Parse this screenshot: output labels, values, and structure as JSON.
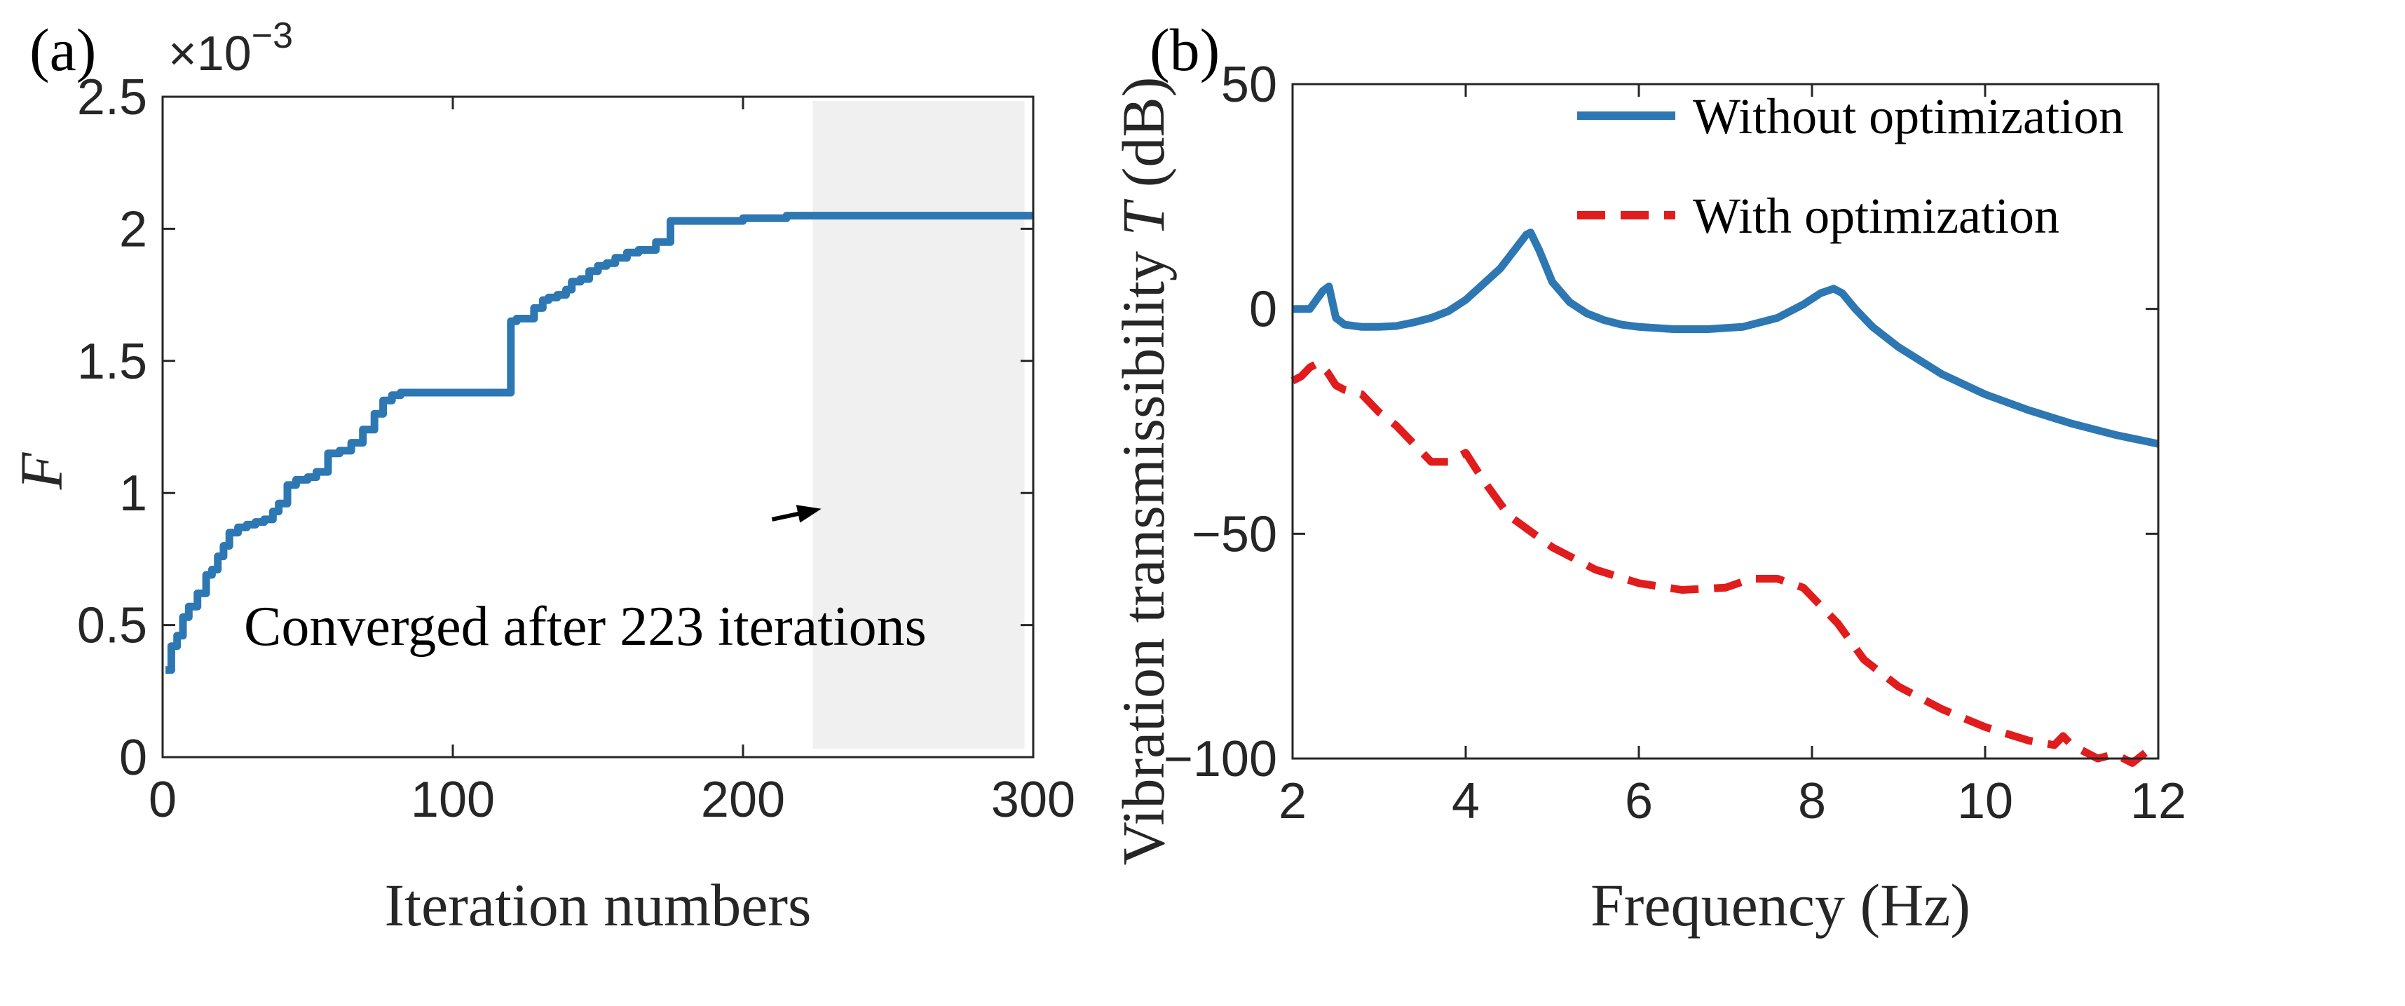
{
  "chart_data": [
    {
      "panel_label": "(a)",
      "type": "line",
      "xlabel": "Iteration numbers",
      "ylabel": "F",
      "y_multiplier_base": "×10",
      "y_multiplier_exp": "−3",
      "xlim": [
        0,
        300
      ],
      "ylim": [
        0,
        2.5
      ],
      "xticks": [
        0,
        100,
        200,
        300
      ],
      "xtick_labels": [
        "0",
        "100",
        "200",
        "300"
      ],
      "yticks": [
        0,
        0.5,
        1,
        1.5,
        2,
        2.5
      ],
      "ytick_labels": [
        "0",
        "0.5",
        "1",
        "1.5",
        "2",
        "2.5"
      ],
      "shaded_region": [
        224,
        297
      ],
      "annotation": {
        "text": "Converged after 223 iterations",
        "arrow_from": [
          210,
          0.9
        ],
        "arrow_to": [
          227,
          0.94
        ]
      },
      "series": [
        {
          "name": "F",
          "color": "#2d77b3",
          "x": [
            1,
            3,
            3,
            5,
            5,
            7,
            7,
            9,
            9,
            12,
            12,
            15,
            15,
            17,
            17,
            19,
            19,
            21,
            21,
            23,
            23,
            26,
            26,
            29,
            29,
            32,
            32,
            35,
            35,
            38,
            38,
            40,
            40,
            43,
            43,
            46,
            46,
            50,
            50,
            53,
            53,
            57,
            57,
            61,
            61,
            65,
            65,
            69,
            69,
            73,
            73,
            76,
            76,
            79,
            79,
            82,
            82,
            85,
            85,
            120,
            120,
            122,
            122,
            128,
            128,
            131,
            131,
            133,
            133,
            136,
            136,
            139,
            139,
            141,
            141,
            144,
            144,
            147,
            147,
            150,
            150,
            153,
            153,
            156,
            156,
            160,
            160,
            164,
            164,
            170,
            170,
            175,
            175,
            181,
            181,
            200,
            200,
            215,
            215,
            224,
            224,
            300
          ],
          "y": [
            0.33,
            0.33,
            0.42,
            0.42,
            0.46,
            0.46,
            0.53,
            0.53,
            0.57,
            0.57,
            0.62,
            0.62,
            0.69,
            0.69,
            0.71,
            0.71,
            0.76,
            0.76,
            0.8,
            0.8,
            0.85,
            0.85,
            0.87,
            0.87,
            0.88,
            0.88,
            0.89,
            0.89,
            0.9,
            0.9,
            0.93,
            0.93,
            0.96,
            0.96,
            1.03,
            1.03,
            1.05,
            1.05,
            1.06,
            1.06,
            1.08,
            1.08,
            1.15,
            1.15,
            1.16,
            1.16,
            1.19,
            1.19,
            1.24,
            1.24,
            1.3,
            1.3,
            1.35,
            1.35,
            1.37,
            1.37,
            1.38,
            1.38,
            1.38,
            1.38,
            1.65,
            1.65,
            1.66,
            1.66,
            1.7,
            1.7,
            1.73,
            1.73,
            1.74,
            1.74,
            1.75,
            1.75,
            1.77,
            1.77,
            1.8,
            1.8,
            1.81,
            1.81,
            1.84,
            1.84,
            1.86,
            1.86,
            1.87,
            1.87,
            1.89,
            1.89,
            1.91,
            1.91,
            1.92,
            1.92,
            1.95,
            1.95,
            2.03,
            2.03,
            2.03,
            2.03,
            2.04,
            2.04,
            2.05,
            2.05,
            2.05,
            2.05
          ]
        }
      ]
    },
    {
      "panel_label": "(b)",
      "type": "line",
      "xlabel": "Frequency (Hz)",
      "ylabel_prefix": "Vibration transmissibility ",
      "ylabel_var": "T",
      "ylabel_suffix": " (dB)",
      "xlim": [
        2,
        12
      ],
      "ylim": [
        -100,
        50
      ],
      "xticks": [
        2,
        4,
        6,
        8,
        10,
        12
      ],
      "xtick_labels": [
        "2",
        "4",
        "6",
        "8",
        "10",
        "12"
      ],
      "yticks": [
        -100,
        -50,
        0,
        50
      ],
      "ytick_labels": [
        "−100",
        "−50",
        "0",
        "50"
      ],
      "legend_position": "top-right",
      "series": [
        {
          "name": "Without optimization",
          "color": "#2d77b3",
          "style": "solid",
          "x": [
            2.0,
            2.2,
            2.35,
            2.42,
            2.5,
            2.6,
            2.8,
            3.0,
            3.2,
            3.4,
            3.6,
            3.8,
            4.0,
            4.2,
            4.4,
            4.6,
            4.7,
            4.75,
            4.85,
            5.0,
            5.2,
            5.4,
            5.6,
            5.8,
            6.0,
            6.4,
            6.8,
            7.2,
            7.6,
            7.9,
            8.1,
            8.25,
            8.35,
            8.5,
            8.7,
            9.0,
            9.5,
            10.0,
            10.5,
            11.0,
            11.5,
            12.0
          ],
          "y": [
            0,
            0,
            4,
            5,
            -2,
            -3.5,
            -4,
            -4,
            -3.8,
            -3,
            -2,
            -0.5,
            2,
            5.5,
            9,
            14,
            16.5,
            17,
            13,
            6,
            1.5,
            -1,
            -2.5,
            -3.5,
            -4,
            -4.5,
            -4.5,
            -4,
            -2,
            1,
            3.5,
            4.5,
            3.5,
            0,
            -4,
            -8.5,
            -14.5,
            -19,
            -22.5,
            -25.5,
            -28,
            -30
          ]
        },
        {
          "name": "With optimization",
          "color": "#e11c1c",
          "style": "dashed",
          "x": [
            2.0,
            2.1,
            2.2,
            2.3,
            2.4,
            2.5,
            2.6,
            2.8,
            3.0,
            3.2,
            3.4,
            3.6,
            3.8,
            4.0,
            4.2,
            4.5,
            5.0,
            5.5,
            6.0,
            6.5,
            7.0,
            7.3,
            7.6,
            7.9,
            8.1,
            8.3,
            8.6,
            9.0,
            9.5,
            10.0,
            10.5,
            10.8,
            10.9,
            11.0,
            11.3,
            11.5,
            11.7,
            11.9,
            12.0
          ],
          "y": [
            -16,
            -15,
            -13,
            -12,
            -14,
            -17,
            -18,
            -19,
            -23,
            -26,
            -30,
            -34,
            -34,
            -32,
            -38,
            -46,
            -53,
            -58,
            -61,
            -62.5,
            -62,
            -60,
            -60,
            -62,
            -66,
            -70,
            -78,
            -84,
            -89,
            -93,
            -96,
            -97,
            -95,
            -97,
            -100,
            -99,
            -101,
            -98,
            -97
          ]
        }
      ]
    }
  ]
}
